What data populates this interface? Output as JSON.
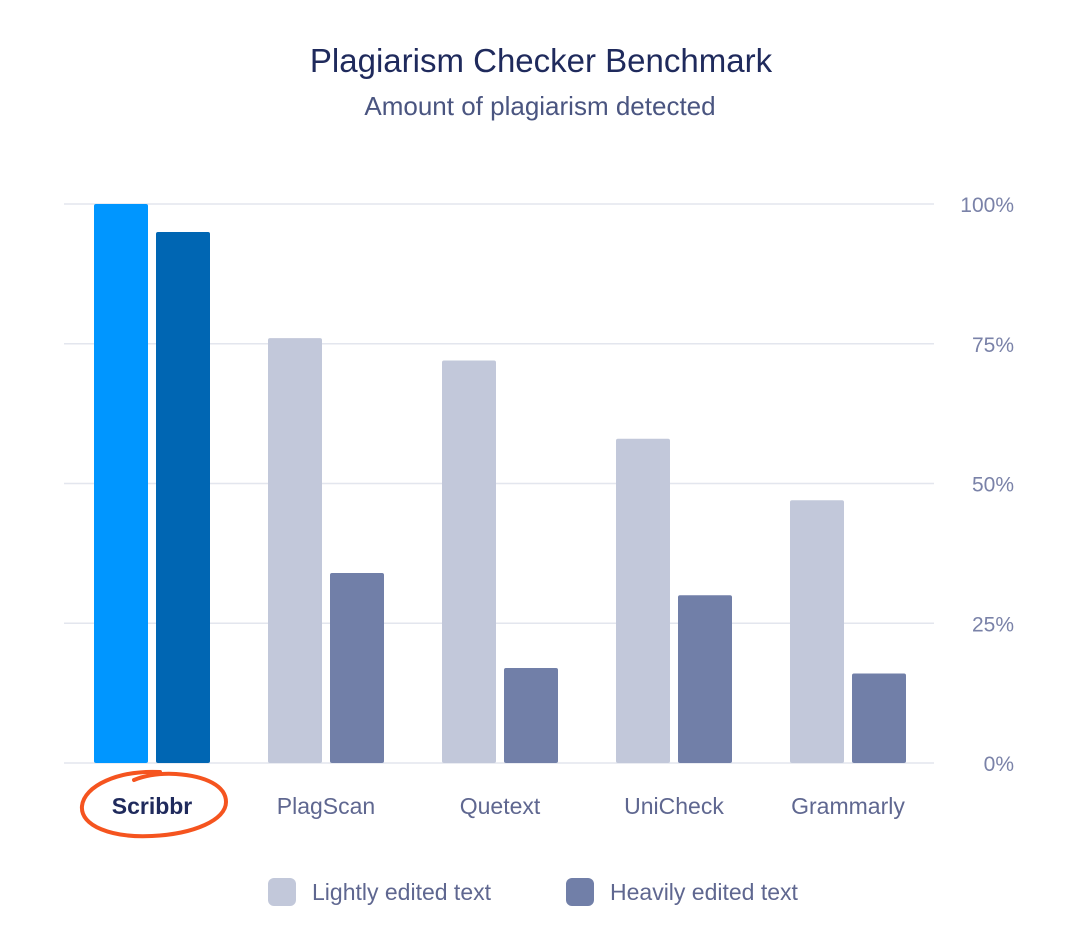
{
  "chart_data": {
    "type": "bar",
    "title": "Plagiarism Checker Benchmark",
    "subtitle": "Amount of plagiarism detected",
    "categories": [
      "Scribbr",
      "PlagScan",
      "Quetext",
      "UniCheck",
      "Grammarly"
    ],
    "highlight_category": "Scribbr",
    "series": [
      {
        "name": "Lightly edited text",
        "values": [
          100,
          76,
          72,
          58,
          47
        ]
      },
      {
        "name": "Heavily edited text",
        "values": [
          95,
          34,
          17,
          30,
          16
        ]
      }
    ],
    "ylim": [
      0,
      100
    ],
    "yticks": [
      {
        "value": 0,
        "label": "0%"
      },
      {
        "value": 25,
        "label": "25%"
      },
      {
        "value": 50,
        "label": "50%"
      },
      {
        "value": 75,
        "label": "75%"
      },
      {
        "value": 100,
        "label": "100%"
      }
    ],
    "y_axis_side": "right",
    "grid": true,
    "legend_position": "bottom-center"
  },
  "colors": {
    "title": "#1f2a5c",
    "subtitle": "#4a5580",
    "tick_label": "#7a82a8",
    "category_label": "#5f6790",
    "highlight_label": "#1f2a5c",
    "grid": "#e3e6ee",
    "series_light": "#c2c8da",
    "series_heavy": "#717fa8",
    "highlight_light": "#0096ff",
    "highlight_heavy": "#0066b3",
    "highlight_circle": "#f5541f",
    "legend_text": "#5f6790"
  }
}
